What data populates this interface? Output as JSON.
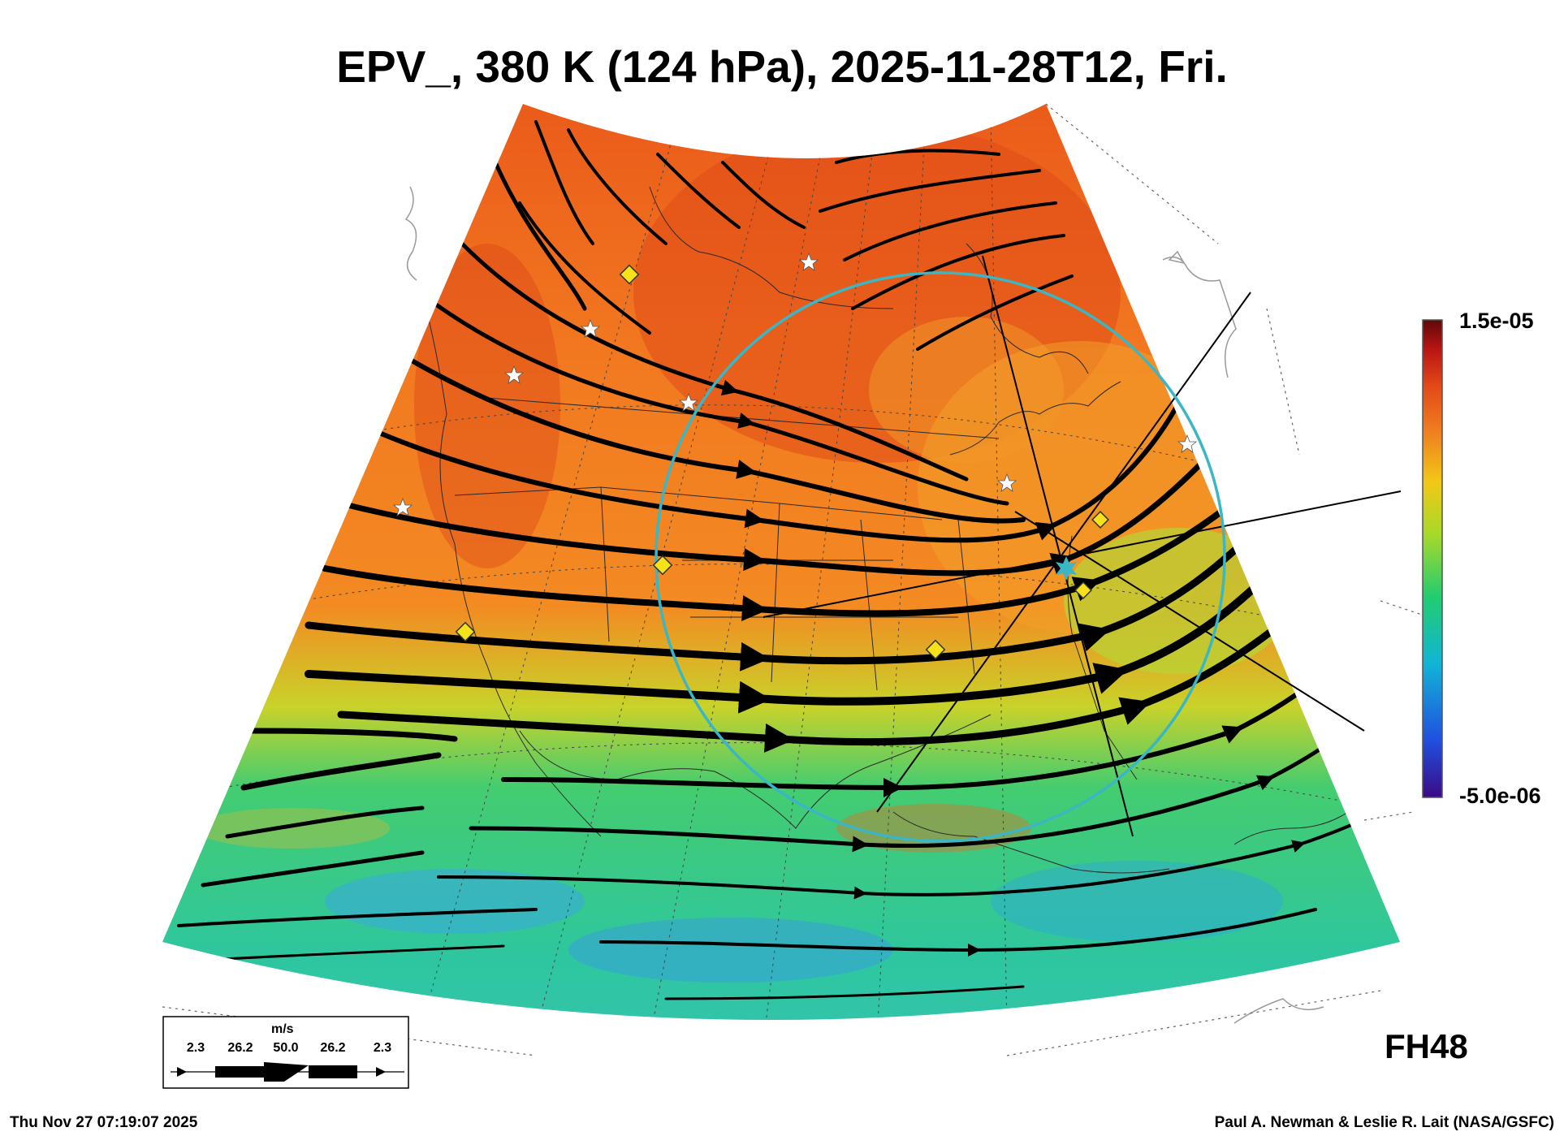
{
  "title": "EPV_, 380 K (124 hPa), 2025-11-28T12, Fri.",
  "colorbar": {
    "max_label": "1.5e-05",
    "min_label": "-5.0e-06",
    "max_value": 1.5e-05,
    "min_value": -5e-06,
    "colormap": [
      "#3b0a86",
      "#2050e0",
      "#12b4d6",
      "#22cc70",
      "#a6d92a",
      "#f2c816",
      "#f08220",
      "#e34a18",
      "#b81414",
      "#600808"
    ]
  },
  "legend": {
    "unit": "m/s",
    "values": [
      "2.3",
      "26.2",
      "50.0",
      "26.2",
      "2.3"
    ]
  },
  "forecast_hour": "FH48",
  "timestamp": "Thu Nov 27 07:19:07 2025",
  "credit": "Paul A. Newman & Leslie R. Lait (NASA/GSFC)",
  "colors": {
    "high_pv": "#f26a1b",
    "mid_pv": "#f6a41e",
    "low_pv": "#38cc78",
    "range_ring": "#3ab6c4",
    "station_marker": "#f5e21a",
    "streamline": "#000000"
  }
}
